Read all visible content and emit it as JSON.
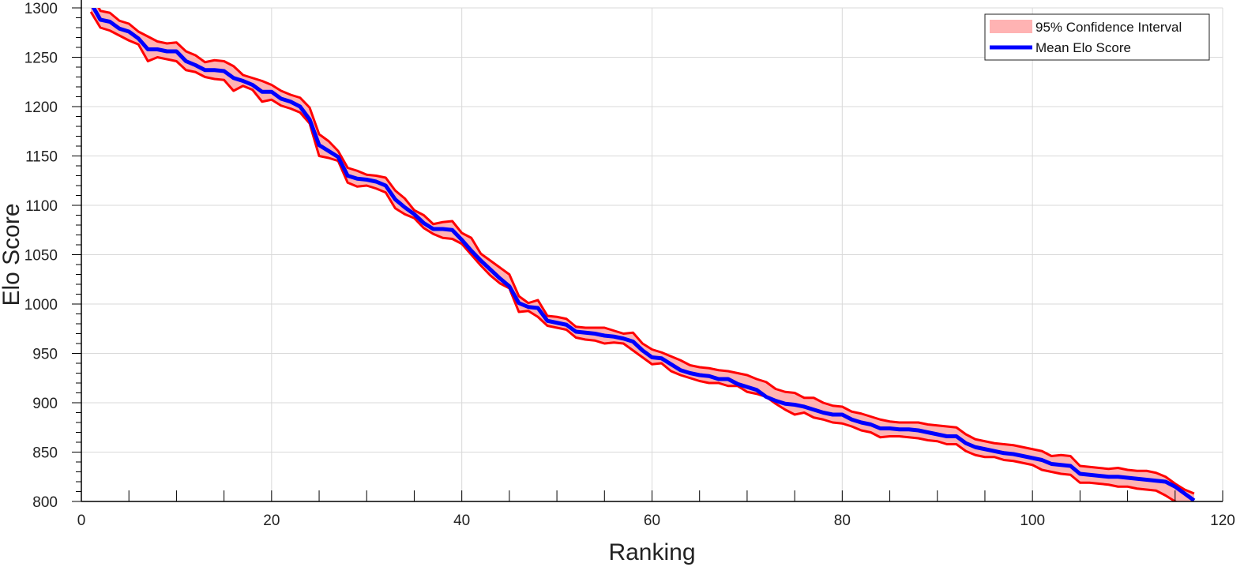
{
  "chart_data": {
    "type": "line",
    "xlabel": "Ranking",
    "ylabel": "Elo Score",
    "xlim": [
      0,
      120
    ],
    "ylim": [
      800,
      1300
    ],
    "x_ticks": [
      0,
      20,
      40,
      60,
      80,
      100,
      120
    ],
    "y_ticks": [
      800,
      850,
      900,
      950,
      1000,
      1050,
      1100,
      1150,
      1200,
      1250,
      1300
    ],
    "grid": true,
    "legend_position": "top-right",
    "colors": {
      "mean": "#0000ff",
      "ci_line": "#ff0000",
      "ci_fill": "#ffb3b3"
    },
    "legend": [
      {
        "label": "95% Confidence Interval",
        "kind": "band"
      },
      {
        "label": "Mean Elo Score",
        "kind": "line"
      }
    ],
    "series": [
      {
        "name": "Mean Elo Score",
        "x": [
          1,
          2,
          3,
          4,
          5,
          6,
          7,
          8,
          9,
          10,
          11,
          12,
          13,
          14,
          15,
          16,
          17,
          18,
          19,
          20,
          21,
          22,
          23,
          24,
          25,
          26,
          27,
          28,
          29,
          30,
          31,
          32,
          33,
          34,
          35,
          36,
          37,
          38,
          39,
          40,
          41,
          42,
          43,
          44,
          45,
          46,
          47,
          48,
          49,
          50,
          51,
          52,
          53,
          54,
          55,
          56,
          57,
          58,
          59,
          60,
          61,
          62,
          63,
          64,
          65,
          66,
          67,
          68,
          69,
          70,
          71,
          72,
          73,
          74,
          75,
          76,
          77,
          78,
          79,
          80,
          81,
          82,
          83,
          84,
          85,
          86,
          87,
          88,
          89,
          90,
          91,
          92,
          93,
          94,
          95,
          96,
          97,
          98,
          99,
          100,
          101,
          102,
          103,
          104,
          105,
          106,
          107,
          108,
          109,
          110,
          111,
          112,
          113,
          114,
          115,
          116,
          117
        ],
        "values": [
          1305,
          1288,
          1286,
          1279,
          1276,
          1269,
          1258,
          1258,
          1256,
          1256,
          1246,
          1242,
          1237,
          1237,
          1236,
          1229,
          1226,
          1222,
          1215,
          1215,
          1208,
          1205,
          1200,
          1187,
          1161,
          1155,
          1149,
          1130,
          1127,
          1126,
          1124,
          1120,
          1106,
          1098,
          1091,
          1082,
          1076,
          1076,
          1075,
          1065,
          1054,
          1044,
          1035,
          1026,
          1018,
          1001,
          997,
          996,
          983,
          981,
          979,
          972,
          971,
          970,
          968,
          967,
          965,
          962,
          953,
          946,
          945,
          939,
          933,
          930,
          928,
          927,
          924,
          924,
          919,
          916,
          913,
          906,
          902,
          899,
          898,
          896,
          893,
          890,
          888,
          888,
          883,
          880,
          878,
          874,
          874,
          873,
          873,
          872,
          870,
          868,
          866,
          866,
          859,
          855,
          853,
          851,
          849,
          848,
          846,
          844,
          842,
          838,
          837,
          836,
          828,
          827,
          826,
          825,
          825,
          824,
          823,
          822,
          821,
          820,
          815,
          808,
          801
        ]
      },
      {
        "name": "95% Confidence Interval (upper)",
        "x": [
          1,
          2,
          3,
          4,
          5,
          6,
          7,
          8,
          9,
          10,
          11,
          12,
          13,
          14,
          15,
          16,
          17,
          18,
          19,
          20,
          21,
          22,
          23,
          24,
          25,
          26,
          27,
          28,
          29,
          30,
          31,
          32,
          33,
          34,
          35,
          36,
          37,
          38,
          39,
          40,
          41,
          42,
          43,
          44,
          45,
          46,
          47,
          48,
          49,
          50,
          51,
          52,
          53,
          54,
          55,
          56,
          57,
          58,
          59,
          60,
          61,
          62,
          63,
          64,
          65,
          66,
          67,
          68,
          69,
          70,
          71,
          72,
          73,
          74,
          75,
          76,
          77,
          78,
          79,
          80,
          81,
          82,
          83,
          84,
          85,
          86,
          87,
          88,
          89,
          90,
          91,
          92,
          93,
          94,
          95,
          96,
          97,
          98,
          99,
          100,
          101,
          102,
          103,
          104,
          105,
          106,
          107,
          108,
          109,
          110,
          111,
          112,
          113,
          114,
          115,
          116,
          117
        ],
        "values": [
          1315,
          1297,
          1295,
          1287,
          1284,
          1276,
          1271,
          1266,
          1264,
          1265,
          1256,
          1252,
          1245,
          1247,
          1246,
          1241,
          1232,
          1229,
          1226,
          1222,
          1216,
          1212,
          1209,
          1199,
          1172,
          1165,
          1155,
          1138,
          1135,
          1131,
          1130,
          1128,
          1115,
          1107,
          1095,
          1090,
          1081,
          1083,
          1084,
          1072,
          1067,
          1051,
          1044,
          1037,
          1030,
          1008,
          1001,
          1004,
          988,
          987,
          985,
          977,
          976,
          976,
          976,
          973,
          970,
          971,
          960,
          954,
          951,
          947,
          943,
          938,
          936,
          935,
          933,
          932,
          930,
          928,
          924,
          921,
          914,
          911,
          910,
          905,
          905,
          900,
          897,
          896,
          891,
          889,
          886,
          883,
          881,
          880,
          880,
          880,
          878,
          877,
          876,
          875,
          868,
          863,
          861,
          859,
          858,
          857,
          855,
          853,
          851,
          846,
          847,
          846,
          836,
          835,
          834,
          833,
          834,
          832,
          831,
          831,
          829,
          825,
          818,
          812,
          808
        ]
      },
      {
        "name": "95% Confidence Interval (lower)",
        "x": [
          1,
          2,
          3,
          4,
          5,
          6,
          7,
          8,
          9,
          10,
          11,
          12,
          13,
          14,
          15,
          16,
          17,
          18,
          19,
          20,
          21,
          22,
          23,
          24,
          25,
          26,
          27,
          28,
          29,
          30,
          31,
          32,
          33,
          34,
          35,
          36,
          37,
          38,
          39,
          40,
          41,
          42,
          43,
          44,
          45,
          46,
          47,
          48,
          49,
          50,
          51,
          52,
          53,
          54,
          55,
          56,
          57,
          58,
          59,
          60,
          61,
          62,
          63,
          64,
          65,
          66,
          67,
          68,
          69,
          70,
          71,
          72,
          73,
          74,
          75,
          76,
          77,
          78,
          79,
          80,
          81,
          82,
          83,
          84,
          85,
          86,
          87,
          88,
          89,
          90,
          91,
          92,
          93,
          94,
          95,
          96,
          97,
          98,
          99,
          100,
          101,
          102,
          103,
          104,
          105,
          106,
          107,
          108,
          109,
          110,
          111,
          112,
          113,
          114,
          115,
          116,
          117
        ],
        "values": [
          1296,
          1280,
          1277,
          1272,
          1267,
          1263,
          1246,
          1250,
          1248,
          1246,
          1237,
          1235,
          1230,
          1228,
          1227,
          1216,
          1221,
          1217,
          1205,
          1207,
          1201,
          1198,
          1194,
          1183,
          1150,
          1148,
          1145,
          1123,
          1119,
          1120,
          1117,
          1113,
          1097,
          1091,
          1087,
          1077,
          1071,
          1067,
          1066,
          1061,
          1050,
          1039,
          1029,
          1021,
          1016,
          992,
          993,
          987,
          978,
          976,
          974,
          966,
          964,
          963,
          960,
          961,
          960,
          953,
          946,
          939,
          940,
          932,
          928,
          925,
          922,
          920,
          920,
          917,
          917,
          911,
          909,
          906,
          899,
          893,
          888,
          890,
          885,
          883,
          880,
          879,
          876,
          872,
          870,
          865,
          866,
          866,
          865,
          864,
          862,
          861,
          858,
          858,
          851,
          847,
          845,
          845,
          842,
          841,
          839,
          837,
          832,
          830,
          828,
          827,
          819,
          819,
          818,
          817,
          815,
          815,
          813,
          812,
          811,
          806,
          800,
          795,
          794
        ]
      }
    ]
  }
}
